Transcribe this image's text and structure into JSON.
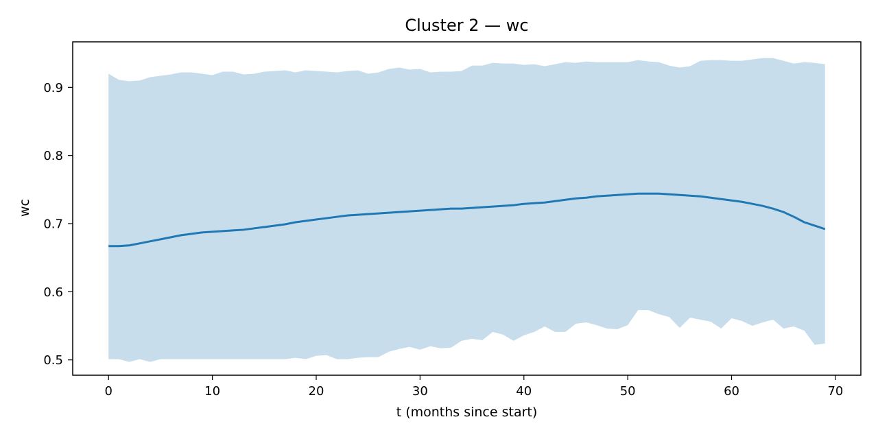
{
  "chart_data": {
    "type": "line",
    "title": "Cluster 2 — wc",
    "xlabel": "t (months since start)",
    "ylabel": "wc",
    "xlim": [
      -3.45,
      72.45
    ],
    "ylim": [
      0.4775,
      0.9668
    ],
    "x_ticks": [
      0,
      10,
      20,
      30,
      40,
      50,
      60,
      70
    ],
    "y_ticks": [
      0.5,
      0.6,
      0.7,
      0.8,
      0.9
    ],
    "y_tick_labels": [
      "0.5",
      "0.6",
      "0.7",
      "0.8",
      "0.9"
    ],
    "grid": false,
    "series": [
      {
        "kind": "line",
        "color": "#1f77b4",
        "x": [
          0,
          1,
          2,
          3,
          4,
          5,
          6,
          7,
          8,
          9,
          10,
          11,
          12,
          13,
          14,
          15,
          16,
          17,
          18,
          19,
          20,
          21,
          22,
          23,
          24,
          25,
          26,
          27,
          28,
          29,
          30,
          31,
          32,
          33,
          34,
          35,
          36,
          37,
          38,
          39,
          40,
          41,
          42,
          43,
          44,
          45,
          46,
          47,
          48,
          49,
          50,
          51,
          52,
          53,
          54,
          55,
          56,
          57,
          58,
          59,
          60,
          61,
          62,
          63,
          64,
          65,
          66,
          67,
          68,
          69
        ],
        "y": [
          0.667,
          0.667,
          0.668,
          0.671,
          0.674,
          0.677,
          0.68,
          0.683,
          0.685,
          0.687,
          0.688,
          0.689,
          0.69,
          0.691,
          0.693,
          0.695,
          0.697,
          0.699,
          0.702,
          0.704,
          0.706,
          0.708,
          0.71,
          0.712,
          0.713,
          0.714,
          0.715,
          0.716,
          0.717,
          0.718,
          0.719,
          0.72,
          0.721,
          0.722,
          0.722,
          0.723,
          0.724,
          0.725,
          0.726,
          0.727,
          0.729,
          0.73,
          0.731,
          0.733,
          0.735,
          0.737,
          0.738,
          0.74,
          0.741,
          0.742,
          0.743,
          0.744,
          0.744,
          0.744,
          0.743,
          0.742,
          0.741,
          0.74,
          0.738,
          0.736,
          0.734,
          0.732,
          0.729,
          0.726,
          0.722,
          0.717,
          0.71,
          0.702,
          0.697,
          0.692
        ]
      },
      {
        "kind": "band",
        "color": "#1f77b4",
        "opacity": 0.25,
        "x": [
          0,
          1,
          2,
          3,
          4,
          5,
          6,
          7,
          8,
          9,
          10,
          11,
          12,
          13,
          14,
          15,
          16,
          17,
          18,
          19,
          20,
          21,
          22,
          23,
          24,
          25,
          26,
          27,
          28,
          29,
          30,
          31,
          32,
          33,
          34,
          35,
          36,
          37,
          38,
          39,
          40,
          41,
          42,
          43,
          44,
          45,
          46,
          47,
          48,
          49,
          50,
          51,
          52,
          53,
          54,
          55,
          56,
          57,
          58,
          59,
          60,
          61,
          62,
          63,
          64,
          65,
          66,
          67,
          68,
          69
        ],
        "upper": [
          0.92,
          0.911,
          0.909,
          0.91,
          0.915,
          0.917,
          0.919,
          0.922,
          0.922,
          0.92,
          0.918,
          0.923,
          0.923,
          0.919,
          0.92,
          0.923,
          0.924,
          0.925,
          0.922,
          0.925,
          0.924,
          0.923,
          0.922,
          0.924,
          0.925,
          0.92,
          0.922,
          0.927,
          0.929,
          0.926,
          0.927,
          0.922,
          0.923,
          0.923,
          0.924,
          0.932,
          0.932,
          0.936,
          0.935,
          0.935,
          0.933,
          0.934,
          0.931,
          0.934,
          0.937,
          0.936,
          0.938,
          0.937,
          0.937,
          0.937,
          0.937,
          0.94,
          0.938,
          0.937,
          0.932,
          0.929,
          0.931,
          0.939,
          0.94,
          0.94,
          0.939,
          0.939,
          0.941,
          0.943,
          0.943,
          0.939,
          0.935,
          0.937,
          0.936,
          0.934
        ],
        "lower": [
          0.501,
          0.501,
          0.497,
          0.501,
          0.497,
          0.501,
          0.501,
          0.501,
          0.501,
          0.501,
          0.501,
          0.501,
          0.501,
          0.501,
          0.501,
          0.501,
          0.501,
          0.501,
          0.503,
          0.501,
          0.506,
          0.507,
          0.501,
          0.501,
          0.503,
          0.504,
          0.504,
          0.512,
          0.516,
          0.519,
          0.515,
          0.52,
          0.517,
          0.518,
          0.528,
          0.531,
          0.529,
          0.541,
          0.537,
          0.528,
          0.536,
          0.541,
          0.549,
          0.541,
          0.541,
          0.553,
          0.555,
          0.551,
          0.546,
          0.545,
          0.551,
          0.573,
          0.573,
          0.567,
          0.563,
          0.547,
          0.562,
          0.559,
          0.556,
          0.546,
          0.561,
          0.557,
          0.55,
          0.555,
          0.559,
          0.546,
          0.549,
          0.543,
          0.522,
          0.524
        ]
      }
    ]
  }
}
